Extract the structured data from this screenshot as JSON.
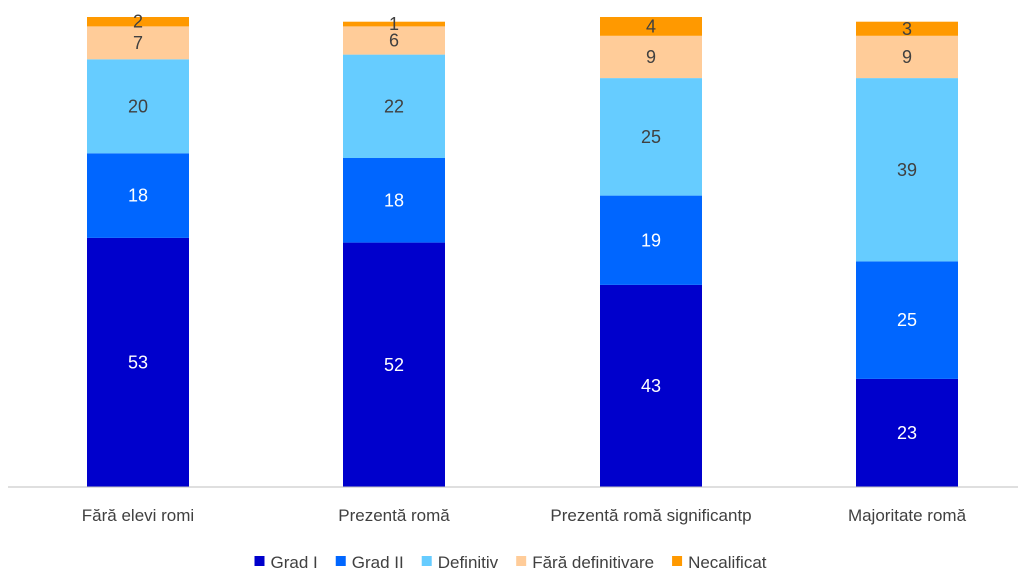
{
  "chart_data": {
    "type": "bar",
    "stacked": true,
    "title": "",
    "xlabel": "",
    "ylabel": "",
    "ylim": [
      0,
      100
    ],
    "grid": false,
    "legend_position": "bottom",
    "categories": [
      "Fără elevi romi",
      "Prezentă romă",
      "Prezentă romă significantp",
      "Majoritate romă"
    ],
    "series": [
      {
        "name": "Grad I",
        "color": "#0000CC",
        "label_color": "#FFFFFF",
        "values": [
          53,
          52,
          43,
          23
        ]
      },
      {
        "name": "Grad II",
        "color": "#0066FF",
        "label_color": "#FFFFFF",
        "values": [
          18,
          18,
          19,
          25
        ]
      },
      {
        "name": "Definitiv",
        "color": "#66CCFF",
        "label_color": "#404040",
        "values": [
          20,
          22,
          25,
          39
        ]
      },
      {
        "name": "Fără definitivare",
        "color": "#FFCC99",
        "label_color": "#404040",
        "values": [
          7,
          6,
          9,
          9
        ]
      },
      {
        "name": "Necalificat",
        "color": "#FF9900",
        "label_color": "#404040",
        "values": [
          2,
          1,
          4,
          3
        ]
      }
    ]
  }
}
